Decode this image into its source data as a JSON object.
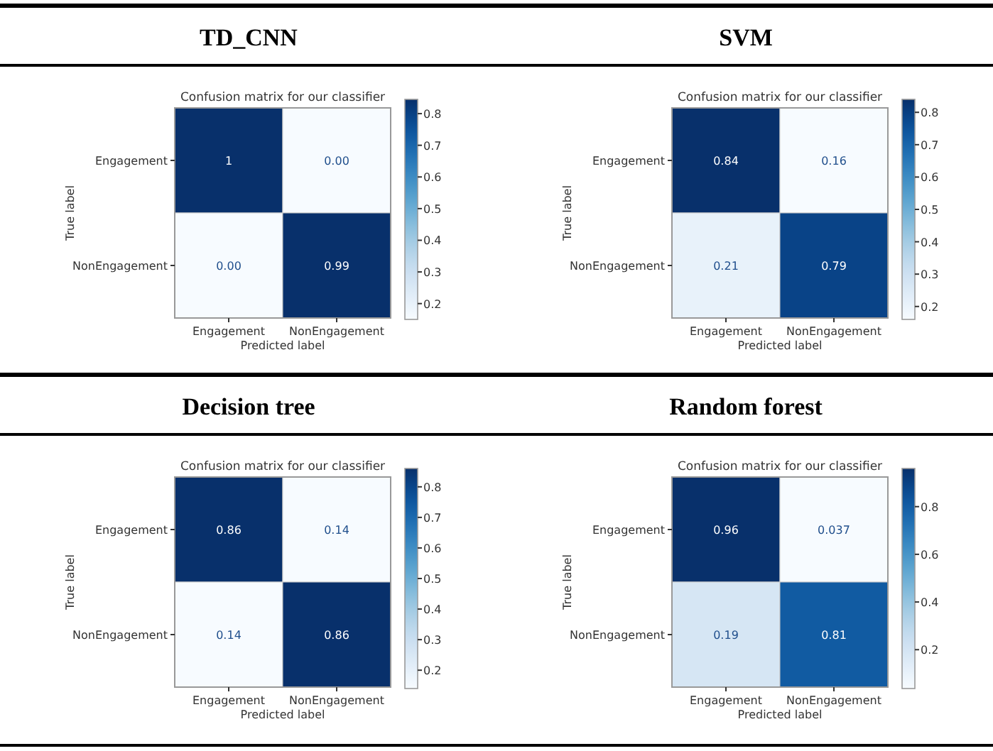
{
  "chart_data": [
    {
      "type": "heatmap",
      "title": "TD_CNN",
      "subtitle": "Confusion matrix for our classifier",
      "xlabel": "Predicted label",
      "ylabel": "True label",
      "categories": [
        "Engagement",
        "NonEngagement"
      ],
      "y_categories": [
        "Engagement",
        "NonEngagement"
      ],
      "cells": [
        [
          1,
          0
        ],
        [
          0,
          0.99
        ]
      ],
      "cell_labels": [
        [
          "1",
          "0.00"
        ],
        [
          "0.00",
          "0.99"
        ]
      ],
      "data_labels": true,
      "clim": [
        0.15,
        0.845
      ],
      "cticks": [
        0.2,
        0.3,
        0.4,
        0.5,
        0.6,
        0.7,
        0.8
      ]
    },
    {
      "type": "heatmap",
      "title": "SVM",
      "subtitle": "Confusion matrix for our classifier",
      "xlabel": "Predicted label",
      "ylabel": "True label",
      "categories": [
        "Engagement",
        "NonEngagement"
      ],
      "y_categories": [
        "Engagement",
        "NonEngagement"
      ],
      "cells": [
        [
          0.84,
          0.16
        ],
        [
          0.21,
          0.79
        ]
      ],
      "data_labels": true,
      "clim": [
        0.16,
        0.84
      ],
      "cticks": [
        0.2,
        0.3,
        0.4,
        0.5,
        0.6,
        0.7,
        0.8
      ]
    },
    {
      "type": "heatmap",
      "title": "Decision tree",
      "subtitle": "Confusion matrix for our classifier",
      "xlabel": "Predicted label",
      "ylabel": "True label",
      "categories": [
        "Engagement",
        "NonEngagement"
      ],
      "y_categories": [
        "Engagement",
        "NonEngagement"
      ],
      "cells": [
        [
          0.86,
          0.14
        ],
        [
          0.14,
          0.86
        ]
      ],
      "data_labels": true,
      "clim": [
        0.14,
        0.86
      ],
      "cticks": [
        0.2,
        0.3,
        0.4,
        0.5,
        0.6,
        0.7,
        0.8
      ]
    },
    {
      "type": "heatmap",
      "title": "Random forest",
      "subtitle": "Confusion matrix for our classifier",
      "xlabel": "Predicted label",
      "ylabel": "True label",
      "categories": [
        "Engagement",
        "NonEngagement"
      ],
      "y_categories": [
        "Engagement",
        "NonEngagement"
      ],
      "cells": [
        [
          0.96,
          0.037
        ],
        [
          0.19,
          0.81
        ]
      ],
      "data_labels": true,
      "clim": [
        0.037,
        0.96
      ],
      "cticks": [
        0.2,
        0.4,
        0.6,
        0.8
      ]
    }
  ]
}
